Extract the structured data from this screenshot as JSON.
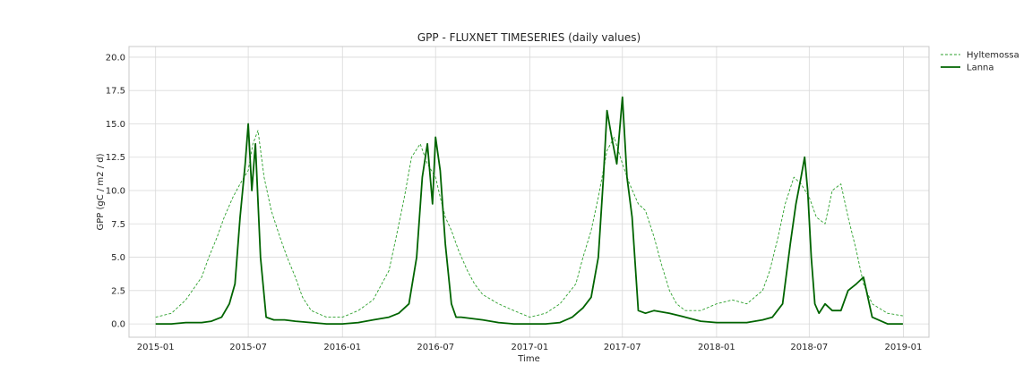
{
  "chart_data": {
    "type": "line",
    "title": "GPP - FLUXNET TIMESERIES (daily values)",
    "xlabel": "Time",
    "ylabel": "GPP (gC / m2 / d)",
    "xlim": [
      "2014-11-10",
      "2019-02-20"
    ],
    "ylim": [
      -1.0,
      20.8
    ],
    "x_ticks": [
      {
        "date": "2015-01-01",
        "label": "2015-01"
      },
      {
        "date": "2015-07-01",
        "label": "2015-07"
      },
      {
        "date": "2016-01-01",
        "label": "2016-01"
      },
      {
        "date": "2016-07-01",
        "label": "2016-07"
      },
      {
        "date": "2017-01-01",
        "label": "2017-01"
      },
      {
        "date": "2017-07-01",
        "label": "2017-07"
      },
      {
        "date": "2018-01-01",
        "label": "2018-01"
      },
      {
        "date": "2018-07-01",
        "label": "2018-07"
      },
      {
        "date": "2019-01-01",
        "label": "2019-01"
      }
    ],
    "y_ticks": [
      0.0,
      2.5,
      5.0,
      7.5,
      10.0,
      12.5,
      15.0,
      17.5,
      20.0
    ],
    "y_tick_labels": [
      "0.0",
      "2.5",
      "5.0",
      "7.5",
      "10.0",
      "12.5",
      "15.0",
      "17.5",
      "20.0"
    ],
    "grid": true,
    "legend_position": "outside-top-right",
    "series": [
      {
        "name": "Hyltemossa",
        "color": "#2ca02c",
        "style": "dashed",
        "x": [
          "2015-01-01",
          "2015-02-01",
          "2015-03-01",
          "2015-04-01",
          "2015-04-15",
          "2015-05-01",
          "2015-05-15",
          "2015-06-01",
          "2015-06-15",
          "2015-07-01",
          "2015-07-10",
          "2015-07-20",
          "2015-08-01",
          "2015-08-15",
          "2015-09-01",
          "2015-09-15",
          "2015-10-01",
          "2015-10-15",
          "2015-11-01",
          "2015-12-01",
          "2016-01-01",
          "2016-02-01",
          "2016-03-01",
          "2016-04-01",
          "2016-04-15",
          "2016-05-01",
          "2016-05-15",
          "2016-06-01",
          "2016-06-15",
          "2016-07-01",
          "2016-07-10",
          "2016-07-20",
          "2016-08-01",
          "2016-08-15",
          "2016-09-01",
          "2016-09-15",
          "2016-10-01",
          "2016-11-01",
          "2016-12-01",
          "2017-01-01",
          "2017-02-01",
          "2017-03-01",
          "2017-04-01",
          "2017-04-15",
          "2017-05-01",
          "2017-05-15",
          "2017-06-01",
          "2017-06-15",
          "2017-07-01",
          "2017-07-15",
          "2017-08-01",
          "2017-08-15",
          "2017-09-01",
          "2017-09-15",
          "2017-10-01",
          "2017-10-15",
          "2017-11-01",
          "2017-12-01",
          "2018-01-01",
          "2018-02-01",
          "2018-03-01",
          "2018-04-01",
          "2018-04-15",
          "2018-05-01",
          "2018-05-15",
          "2018-06-01",
          "2018-06-15",
          "2018-07-01",
          "2018-07-15",
          "2018-08-01",
          "2018-08-15",
          "2018-09-01",
          "2018-09-15",
          "2018-10-01",
          "2018-10-15",
          "2018-11-01",
          "2018-12-01",
          "2018-12-31"
        ],
        "values": [
          0.5,
          0.8,
          1.8,
          3.5,
          5.0,
          6.5,
          8.0,
          9.5,
          10.5,
          11.5,
          13.5,
          14.5,
          11.0,
          8.5,
          6.5,
          5.0,
          3.5,
          2.0,
          1.0,
          0.5,
          0.5,
          1.0,
          1.8,
          4.0,
          6.5,
          9.5,
          12.5,
          13.5,
          12.0,
          11.0,
          9.5,
          8.0,
          7.0,
          5.5,
          4.0,
          3.0,
          2.2,
          1.5,
          1.0,
          0.5,
          0.8,
          1.5,
          3.0,
          5.0,
          7.0,
          9.5,
          13.0,
          14.0,
          12.0,
          10.5,
          9.0,
          8.5,
          6.5,
          4.5,
          2.5,
          1.5,
          1.0,
          1.0,
          1.5,
          1.8,
          1.5,
          2.5,
          4.0,
          6.5,
          9.0,
          11.0,
          10.5,
          9.5,
          8.0,
          7.5,
          10.0,
          10.5,
          8.0,
          5.5,
          3.0,
          1.5,
          0.8,
          0.6
        ]
      },
      {
        "name": "Lanna",
        "color": "#006400",
        "style": "solid",
        "x": [
          "2015-01-01",
          "2015-02-01",
          "2015-03-01",
          "2015-04-01",
          "2015-04-20",
          "2015-05-10",
          "2015-05-25",
          "2015-06-05",
          "2015-06-15",
          "2015-06-25",
          "2015-07-01",
          "2015-07-08",
          "2015-07-15",
          "2015-07-25",
          "2015-08-05",
          "2015-08-20",
          "2015-09-10",
          "2015-10-01",
          "2015-11-01",
          "2015-12-01",
          "2016-01-01",
          "2016-02-01",
          "2016-03-01",
          "2016-04-01",
          "2016-04-20",
          "2016-05-10",
          "2016-05-25",
          "2016-06-05",
          "2016-06-15",
          "2016-06-25",
          "2016-07-01",
          "2016-07-10",
          "2016-07-20",
          "2016-08-01",
          "2016-08-10",
          "2016-08-20",
          "2016-09-10",
          "2016-10-01",
          "2016-11-01",
          "2016-12-01",
          "2017-01-01",
          "2017-02-01",
          "2017-03-01",
          "2017-03-25",
          "2017-04-15",
          "2017-05-01",
          "2017-05-15",
          "2017-05-25",
          "2017-06-01",
          "2017-06-10",
          "2017-06-20",
          "2017-07-01",
          "2017-07-10",
          "2017-07-20",
          "2017-08-01",
          "2017-08-15",
          "2017-09-01",
          "2017-10-01",
          "2017-11-01",
          "2017-12-01",
          "2018-01-01",
          "2018-02-01",
          "2018-03-01",
          "2018-04-01",
          "2018-04-20",
          "2018-05-10",
          "2018-05-25",
          "2018-06-05",
          "2018-06-15",
          "2018-06-22",
          "2018-06-28",
          "2018-07-05",
          "2018-07-12",
          "2018-07-20",
          "2018-08-01",
          "2018-08-15",
          "2018-09-01",
          "2018-09-15",
          "2018-10-01",
          "2018-10-15",
          "2018-11-01",
          "2018-12-01",
          "2018-12-31"
        ],
        "values": [
          0.0,
          0.0,
          0.1,
          0.1,
          0.2,
          0.5,
          1.5,
          3.0,
          8.0,
          12.0,
          15.0,
          10.0,
          13.5,
          5.0,
          0.5,
          0.3,
          0.3,
          0.2,
          0.1,
          0.0,
          0.0,
          0.1,
          0.3,
          0.5,
          0.8,
          1.5,
          5.0,
          11.0,
          13.5,
          9.0,
          14.0,
          11.5,
          6.0,
          1.5,
          0.5,
          0.5,
          0.4,
          0.3,
          0.1,
          0.0,
          0.0,
          0.0,
          0.1,
          0.5,
          1.2,
          2.0,
          5.0,
          11.0,
          16.0,
          14.0,
          12.0,
          17.0,
          11.0,
          8.0,
          1.0,
          0.8,
          1.0,
          0.8,
          0.5,
          0.2,
          0.1,
          0.1,
          0.1,
          0.3,
          0.5,
          1.5,
          6.0,
          9.0,
          11.0,
          12.5,
          10.0,
          5.0,
          1.5,
          0.8,
          1.5,
          1.0,
          1.0,
          2.5,
          3.0,
          3.5,
          0.5,
          0.0,
          0.0
        ]
      }
    ]
  }
}
